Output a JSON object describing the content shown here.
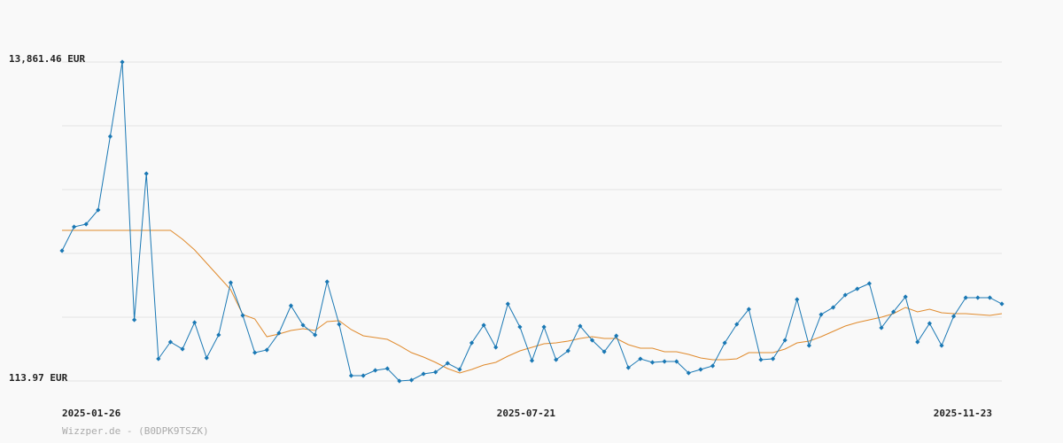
{
  "chart_data": {
    "type": "line",
    "categories": [
      "2025-01-26",
      null,
      null,
      null,
      null,
      null,
      null,
      null,
      null,
      null,
      null,
      null,
      null,
      null,
      null,
      null,
      null,
      null,
      null,
      null,
      null,
      null,
      null,
      null,
      null,
      null,
      null,
      null,
      null,
      null,
      null,
      null,
      null,
      null,
      null,
      null,
      null,
      null,
      "2025-07-21",
      null,
      null,
      null,
      null,
      null,
      null,
      null,
      null,
      null,
      null,
      null,
      null,
      null,
      null,
      null,
      null,
      null,
      null,
      null,
      null,
      null,
      null,
      null,
      null,
      null,
      null,
      null,
      null,
      null,
      null,
      null,
      null,
      null,
      null,
      null,
      null,
      null,
      null,
      null,
      "2025-11-23"
    ],
    "series": [
      {
        "color": "#1a78b4",
        "markers": true,
        "values": [
          5727,
          6758,
          6873,
          7484,
          10654,
          13861,
          2749,
          9050,
          1069,
          1794,
          1489,
          2634,
          1107,
          2100,
          4353,
          2940,
          1336,
          1451,
          2176,
          3360,
          2520,
          2100,
          4391,
          2558,
          343,
          343,
          572,
          649,
          114,
          152,
          419,
          496,
          878,
          610,
          1756,
          2520,
          1565,
          3436,
          2443,
          992,
          2443,
          1030,
          1412,
          2482,
          1871,
          1374,
          2062,
          687,
          1069,
          916,
          954,
          954,
          458,
          610,
          763,
          1756,
          2558,
          3207,
          1030,
          1069,
          1871,
          3627,
          1641,
          2978,
          3284,
          3818,
          4085,
          4315,
          2405,
          3093,
          3742,
          1794,
          2596,
          1641,
          2902,
          3704,
          3704,
          3704,
          3436
        ]
      },
      {
        "color": "#e08a2c",
        "markers": false,
        "values": [
          6606,
          6606,
          6606,
          6606,
          6606,
          6606,
          6606,
          6606,
          6606,
          6606,
          6224,
          5766,
          5193,
          4620,
          4047,
          2978,
          2787,
          2023,
          2138,
          2291,
          2367,
          2291,
          2673,
          2711,
          2329,
          2062,
          1985,
          1909,
          1641,
          1336,
          1145,
          916,
          649,
          458,
          610,
          801,
          916,
          1183,
          1412,
          1565,
          1718,
          1756,
          1832,
          1947,
          2023,
          1947,
          1947,
          1680,
          1527,
          1527,
          1374,
          1374,
          1260,
          1107,
          1030,
          1030,
          1069,
          1336,
          1336,
          1336,
          1489,
          1756,
          1832,
          2023,
          2252,
          2482,
          2634,
          2749,
          2863,
          3016,
          3284,
          3093,
          3207,
          3054,
          3016,
          3016,
          2978,
          2940,
          3016
        ]
      }
    ],
    "ylim": [
      113.97,
      13861.46
    ],
    "yticks": [
      {
        "value": 13861.46,
        "label": "13,861.46 EUR"
      },
      {
        "value": 113.97,
        "label": "113.97 EUR"
      }
    ],
    "ygrid": [
      113.97,
      2863.47,
      5612.97,
      8362.47,
      11111.96,
      13861.46
    ],
    "grid": true,
    "footer": "Wizzper.de - (B0DPK9TSZK)"
  }
}
